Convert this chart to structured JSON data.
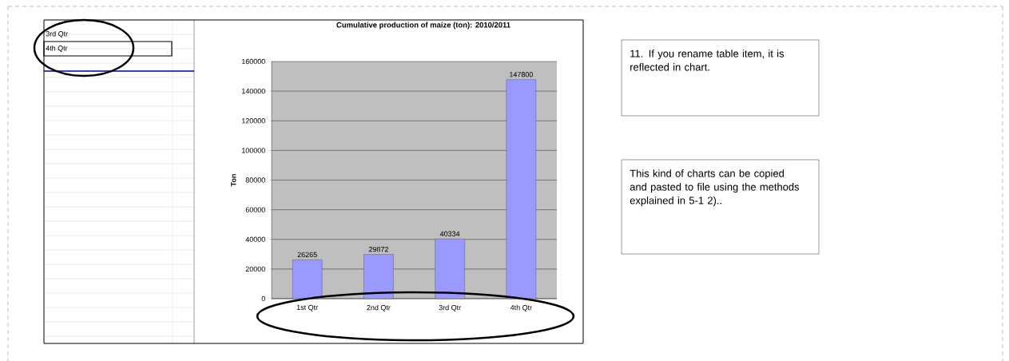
{
  "chart_data": {
    "type": "bar",
    "title": "Cumulative production of maize (ton): 2010/2011",
    "ylabel": "Ton",
    "categories": [
      "1st Qtr",
      "2nd Qtr",
      "3rd Qtr",
      "4th Qtr"
    ],
    "values": [
      26265,
      29872,
      40334,
      147800
    ],
    "color": "#9999ff",
    "data_labels": true,
    "ylim": [
      0,
      160000
    ],
    "yticks": [
      0,
      20000,
      40000,
      60000,
      80000,
      100000,
      120000,
      140000,
      160000
    ],
    "grid": "y",
    "annotations": [
      "3rd Qtr",
      "4th Qtr",
      "11. If you rename table item, it is reflected in chart.",
      "This kind of charts can be copied and pasted to file using the methods explained in 5-1 2).."
    ]
  }
}
